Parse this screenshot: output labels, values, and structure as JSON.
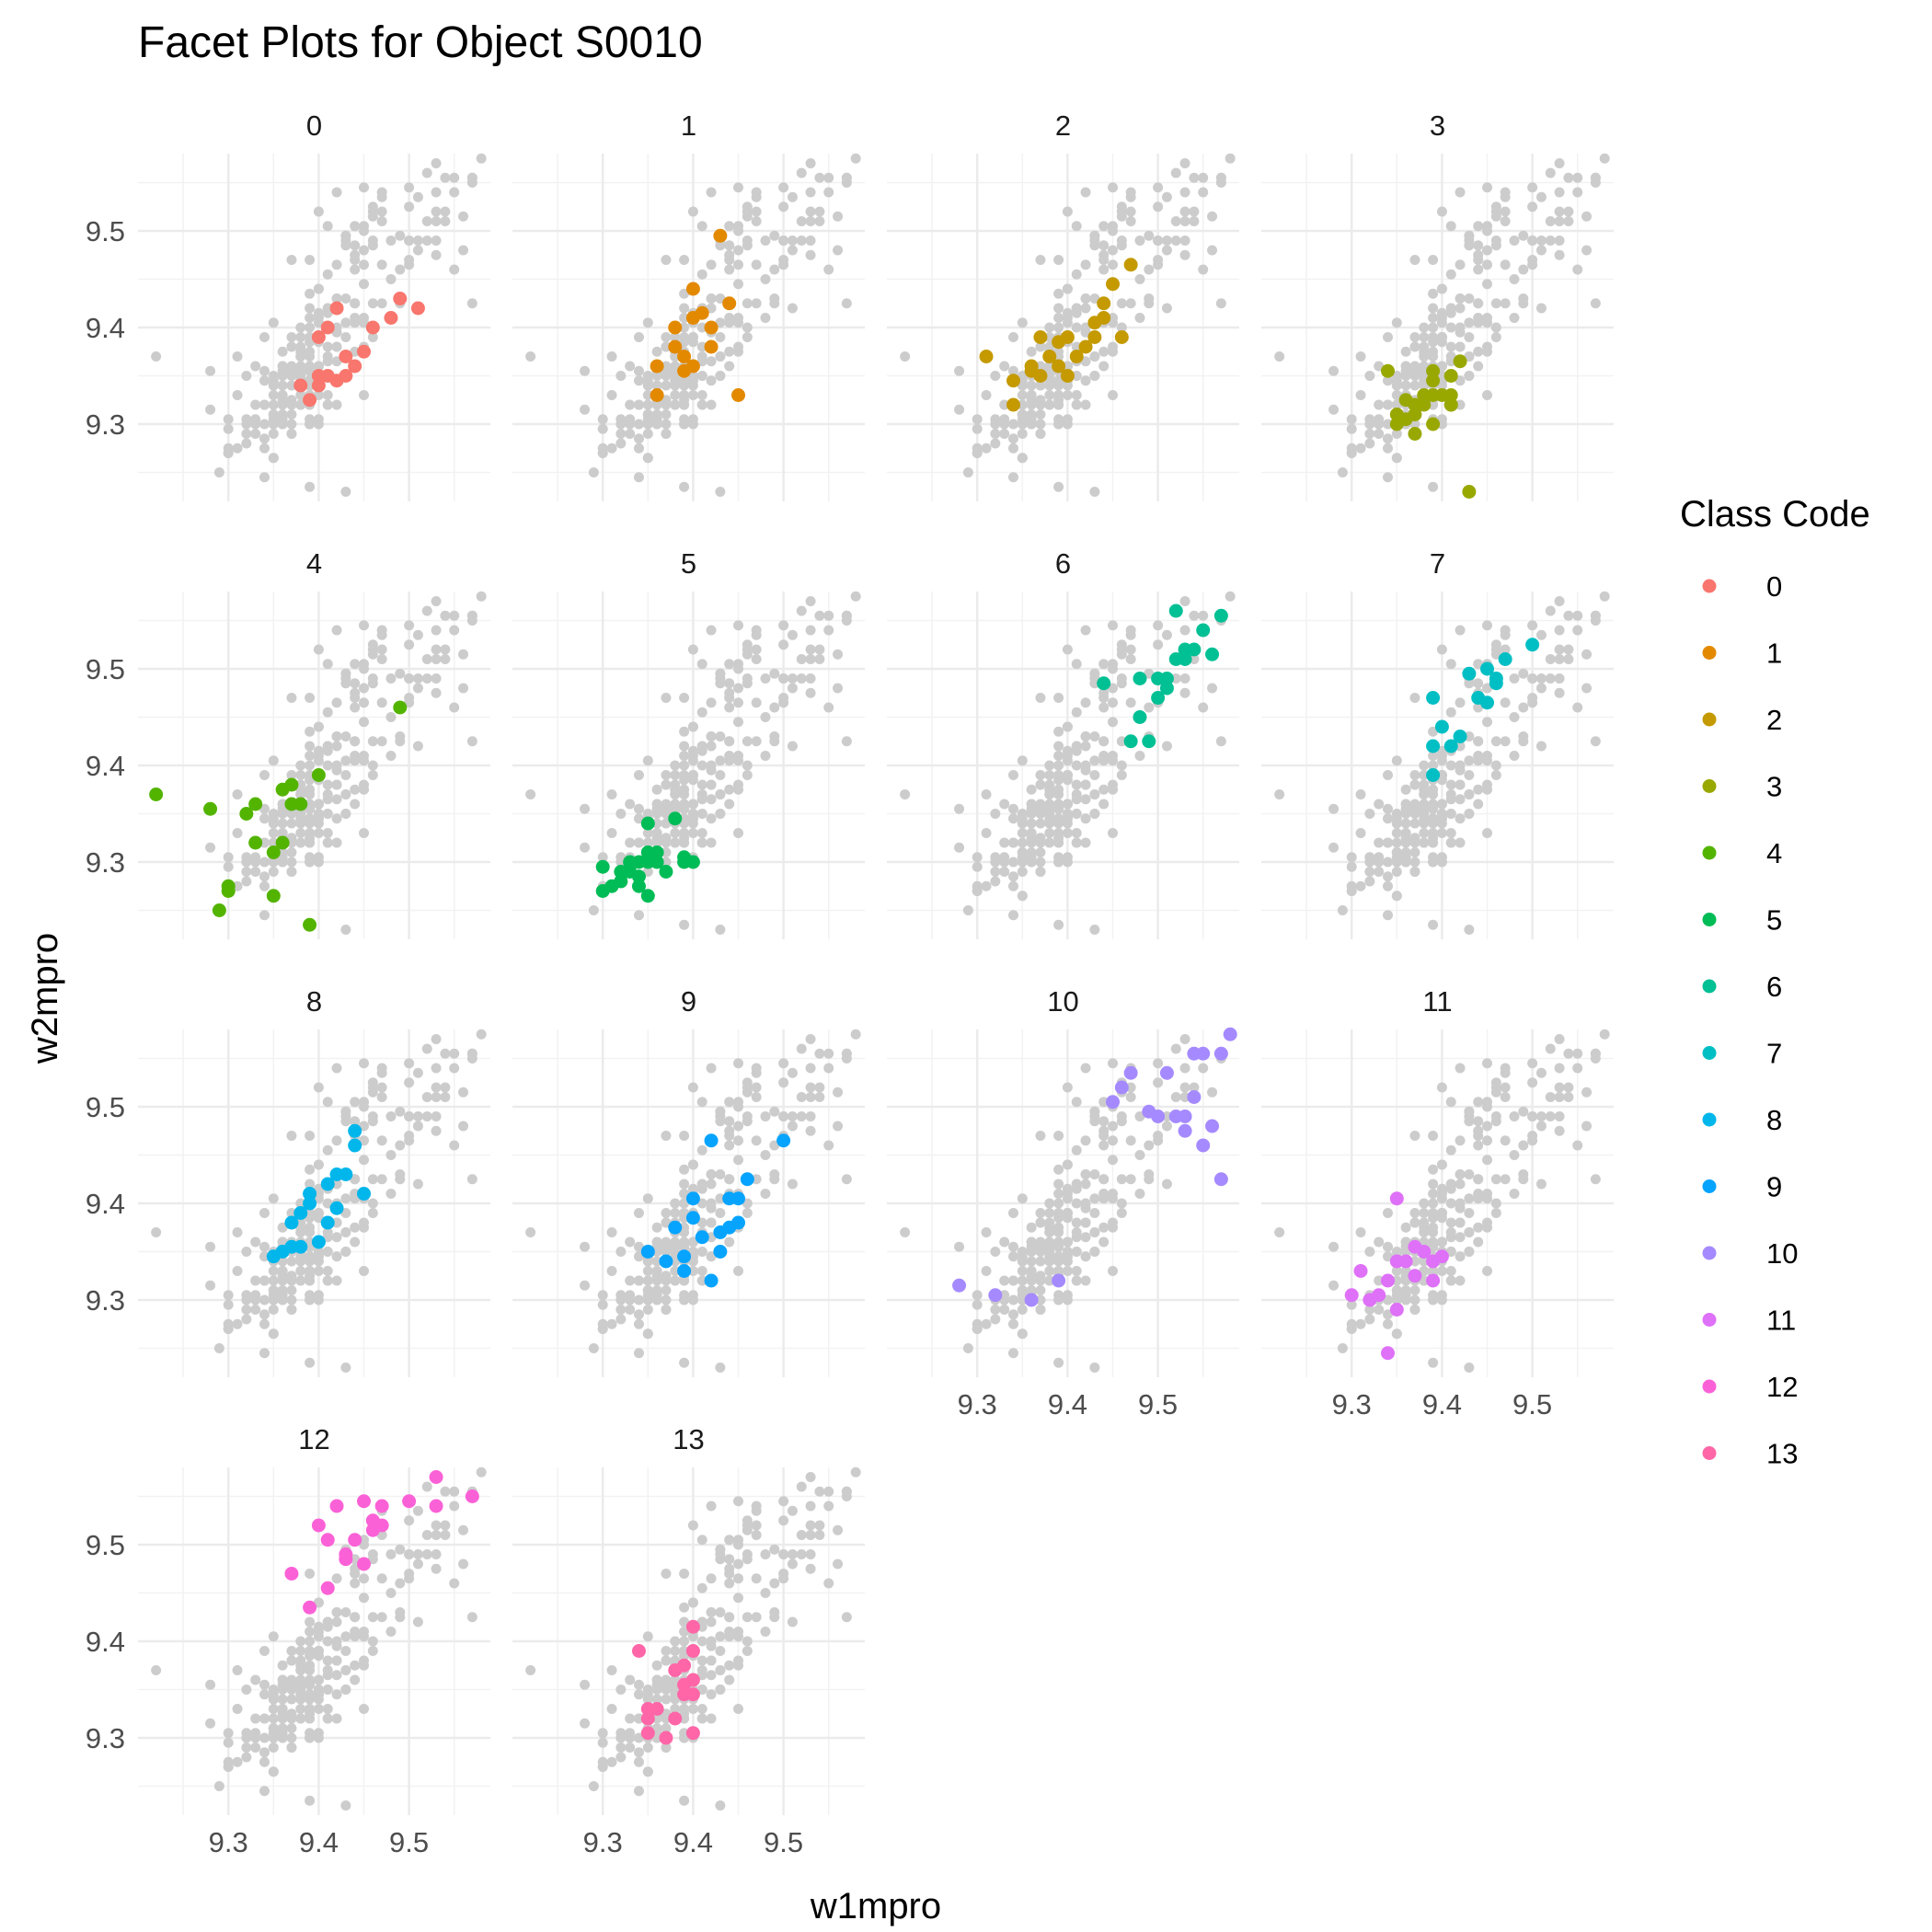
{
  "chart_data": {
    "type": "scatter",
    "title": "Facet Plots for Object S0010",
    "xlabel": "w1mpro",
    "ylabel": "w2mpro",
    "xlim": [
      9.2,
      9.59
    ],
    "ylim": [
      9.22,
      9.58
    ],
    "x_ticks": [
      "9.3",
      "9.4",
      "9.5"
    ],
    "y_ticks": [
      "9.3",
      "9.4",
      "9.5"
    ],
    "grid": true,
    "background_color": "#cccccc",
    "legend": {
      "title": "Class Code",
      "placement": "right"
    },
    "facets": [
      {
        "label": "0",
        "color": "#F8766D",
        "points": [
          [
            9.38,
            9.34
          ],
          [
            9.39,
            9.325
          ],
          [
            9.4,
            9.35
          ],
          [
            9.4,
            9.34
          ],
          [
            9.41,
            9.35
          ],
          [
            9.42,
            9.345
          ],
          [
            9.43,
            9.37
          ],
          [
            9.44,
            9.36
          ],
          [
            9.43,
            9.35
          ],
          [
            9.45,
            9.375
          ],
          [
            9.4,
            9.39
          ],
          [
            9.41,
            9.4
          ],
          [
            9.42,
            9.42
          ],
          [
            9.46,
            9.4
          ],
          [
            9.48,
            9.41
          ],
          [
            9.49,
            9.43
          ],
          [
            9.51,
            9.42
          ]
        ]
      },
      {
        "label": "1",
        "color": "#E38900",
        "points": [
          [
            9.36,
            9.33
          ],
          [
            9.36,
            9.36
          ],
          [
            9.38,
            9.38
          ],
          [
            9.38,
            9.4
          ],
          [
            9.39,
            9.37
          ],
          [
            9.39,
            9.355
          ],
          [
            9.4,
            9.36
          ],
          [
            9.4,
            9.41
          ],
          [
            9.4,
            9.44
          ],
          [
            9.41,
            9.415
          ],
          [
            9.42,
            9.38
          ],
          [
            9.42,
            9.4
          ],
          [
            9.43,
            9.495
          ],
          [
            9.44,
            9.425
          ],
          [
            9.45,
            9.33
          ]
        ]
      },
      {
        "label": "2",
        "color": "#C49A00",
        "points": [
          [
            9.31,
            9.37
          ],
          [
            9.34,
            9.32
          ],
          [
            9.34,
            9.345
          ],
          [
            9.36,
            9.355
          ],
          [
            9.36,
            9.36
          ],
          [
            9.37,
            9.39
          ],
          [
            9.37,
            9.35
          ],
          [
            9.38,
            9.37
          ],
          [
            9.39,
            9.385
          ],
          [
            9.39,
            9.36
          ],
          [
            9.4,
            9.35
          ],
          [
            9.4,
            9.39
          ],
          [
            9.41,
            9.37
          ],
          [
            9.42,
            9.38
          ],
          [
            9.43,
            9.39
          ],
          [
            9.43,
            9.405
          ],
          [
            9.44,
            9.41
          ],
          [
            9.44,
            9.425
          ],
          [
            9.45,
            9.445
          ],
          [
            9.46,
            9.39
          ],
          [
            9.47,
            9.465
          ]
        ]
      },
      {
        "label": "3",
        "color": "#99A800",
        "points": [
          [
            9.34,
            9.355
          ],
          [
            9.35,
            9.31
          ],
          [
            9.35,
            9.3
          ],
          [
            9.36,
            9.325
          ],
          [
            9.36,
            9.305
          ],
          [
            9.37,
            9.31
          ],
          [
            9.37,
            9.29
          ],
          [
            9.37,
            9.32
          ],
          [
            9.38,
            9.33
          ],
          [
            9.38,
            9.32
          ],
          [
            9.39,
            9.355
          ],
          [
            9.39,
            9.345
          ],
          [
            9.39,
            9.3
          ],
          [
            9.39,
            9.33
          ],
          [
            9.4,
            9.33
          ],
          [
            9.41,
            9.35
          ],
          [
            9.41,
            9.32
          ],
          [
            9.41,
            9.32
          ],
          [
            9.41,
            9.33
          ],
          [
            9.42,
            9.365
          ],
          [
            9.43,
            9.23
          ]
        ]
      },
      {
        "label": "4",
        "color": "#53B400",
        "points": [
          [
            9.22,
            9.37
          ],
          [
            9.28,
            9.355
          ],
          [
            9.29,
            9.25
          ],
          [
            9.3,
            9.275
          ],
          [
            9.3,
            9.27
          ],
          [
            9.32,
            9.35
          ],
          [
            9.33,
            9.36
          ],
          [
            9.33,
            9.32
          ],
          [
            9.35,
            9.265
          ],
          [
            9.35,
            9.31
          ],
          [
            9.36,
            9.32
          ],
          [
            9.36,
            9.375
          ],
          [
            9.37,
            9.38
          ],
          [
            9.37,
            9.36
          ],
          [
            9.38,
            9.36
          ],
          [
            9.39,
            9.235
          ],
          [
            9.4,
            9.39
          ],
          [
            9.49,
            9.46
          ]
        ]
      },
      {
        "label": "5",
        "color": "#00BC56",
        "points": [
          [
            9.3,
            9.295
          ],
          [
            9.3,
            9.27
          ],
          [
            9.31,
            9.275
          ],
          [
            9.32,
            9.29
          ],
          [
            9.32,
            9.28
          ],
          [
            9.33,
            9.3
          ],
          [
            9.33,
            9.29
          ],
          [
            9.34,
            9.285
          ],
          [
            9.34,
            9.3
          ],
          [
            9.34,
            9.275
          ],
          [
            9.35,
            9.31
          ],
          [
            9.35,
            9.265
          ],
          [
            9.35,
            9.3
          ],
          [
            9.36,
            9.3
          ],
          [
            9.36,
            9.31
          ],
          [
            9.37,
            9.29
          ],
          [
            9.38,
            9.345
          ],
          [
            9.39,
            9.305
          ],
          [
            9.39,
            9.3
          ],
          [
            9.4,
            9.3
          ],
          [
            9.35,
            9.34
          ]
        ]
      },
      {
        "label": "6",
        "color": "#00C094",
        "points": [
          [
            9.44,
            9.485
          ],
          [
            9.47,
            9.425
          ],
          [
            9.48,
            9.45
          ],
          [
            9.48,
            9.49
          ],
          [
            9.49,
            9.425
          ],
          [
            9.5,
            9.49
          ],
          [
            9.5,
            9.47
          ],
          [
            9.51,
            9.49
          ],
          [
            9.51,
            9.48
          ],
          [
            9.52,
            9.51
          ],
          [
            9.53,
            9.51
          ],
          [
            9.53,
            9.52
          ],
          [
            9.54,
            9.52
          ],
          [
            9.55,
            9.54
          ],
          [
            9.56,
            9.515
          ],
          [
            9.57,
            9.555
          ],
          [
            9.52,
            9.56
          ]
        ]
      },
      {
        "label": "7",
        "color": "#00BFC4",
        "points": [
          [
            9.39,
            9.39
          ],
          [
            9.39,
            9.42
          ],
          [
            9.39,
            9.47
          ],
          [
            9.4,
            9.44
          ],
          [
            9.41,
            9.42
          ],
          [
            9.42,
            9.43
          ],
          [
            9.43,
            9.495
          ],
          [
            9.44,
            9.47
          ],
          [
            9.45,
            9.465
          ],
          [
            9.45,
            9.5
          ],
          [
            9.46,
            9.485
          ],
          [
            9.46,
            9.49
          ],
          [
            9.47,
            9.51
          ],
          [
            9.5,
            9.525
          ]
        ]
      },
      {
        "label": "8",
        "color": "#00B6EB",
        "points": [
          [
            9.35,
            9.345
          ],
          [
            9.36,
            9.35
          ],
          [
            9.37,
            9.355
          ],
          [
            9.37,
            9.38
          ],
          [
            9.38,
            9.39
          ],
          [
            9.38,
            9.355
          ],
          [
            9.39,
            9.4
          ],
          [
            9.39,
            9.41
          ],
          [
            9.4,
            9.36
          ],
          [
            9.41,
            9.38
          ],
          [
            9.41,
            9.42
          ],
          [
            9.42,
            9.43
          ],
          [
            9.42,
            9.395
          ],
          [
            9.43,
            9.43
          ],
          [
            9.44,
            9.46
          ],
          [
            9.44,
            9.475
          ],
          [
            9.45,
            9.41
          ]
        ]
      },
      {
        "label": "9",
        "color": "#06A4FF",
        "points": [
          [
            9.35,
            9.35
          ],
          [
            9.37,
            9.34
          ],
          [
            9.38,
            9.375
          ],
          [
            9.39,
            9.33
          ],
          [
            9.39,
            9.345
          ],
          [
            9.4,
            9.405
          ],
          [
            9.4,
            9.385
          ],
          [
            9.41,
            9.365
          ],
          [
            9.42,
            9.32
          ],
          [
            9.42,
            9.465
          ],
          [
            9.43,
            9.35
          ],
          [
            9.43,
            9.37
          ],
          [
            9.44,
            9.405
          ],
          [
            9.44,
            9.375
          ],
          [
            9.45,
            9.38
          ],
          [
            9.45,
            9.405
          ],
          [
            9.46,
            9.425
          ],
          [
            9.5,
            9.465
          ]
        ]
      },
      {
        "label": "10",
        "color": "#A58AFF",
        "points": [
          [
            9.28,
            9.315
          ],
          [
            9.32,
            9.305
          ],
          [
            9.36,
            9.3
          ],
          [
            9.39,
            9.32
          ],
          [
            9.45,
            9.505
          ],
          [
            9.46,
            9.52
          ],
          [
            9.47,
            9.535
          ],
          [
            9.49,
            9.495
          ],
          [
            9.5,
            9.49
          ],
          [
            9.51,
            9.535
          ],
          [
            9.52,
            9.49
          ],
          [
            9.53,
            9.475
          ],
          [
            9.53,
            9.49
          ],
          [
            9.54,
            9.555
          ],
          [
            9.54,
            9.51
          ],
          [
            9.55,
            9.46
          ],
          [
            9.55,
            9.555
          ],
          [
            9.56,
            9.48
          ],
          [
            9.57,
            9.555
          ],
          [
            9.57,
            9.425
          ],
          [
            9.58,
            9.575
          ]
        ]
      },
      {
        "label": "11",
        "color": "#DF70F8",
        "points": [
          [
            9.3,
            9.305
          ],
          [
            9.31,
            9.33
          ],
          [
            9.32,
            9.3
          ],
          [
            9.33,
            9.305
          ],
          [
            9.34,
            9.32
          ],
          [
            9.34,
            9.245
          ],
          [
            9.35,
            9.34
          ],
          [
            9.35,
            9.29
          ],
          [
            9.35,
            9.405
          ],
          [
            9.36,
            9.34
          ],
          [
            9.37,
            9.355
          ],
          [
            9.37,
            9.325
          ],
          [
            9.38,
            9.35
          ],
          [
            9.39,
            9.34
          ],
          [
            9.39,
            9.32
          ],
          [
            9.4,
            9.345
          ]
        ]
      },
      {
        "label": "12",
        "color": "#FB61D7",
        "points": [
          [
            9.37,
            9.47
          ],
          [
            9.39,
            9.435
          ],
          [
            9.4,
            9.52
          ],
          [
            9.41,
            9.455
          ],
          [
            9.41,
            9.505
          ],
          [
            9.42,
            9.54
          ],
          [
            9.43,
            9.485
          ],
          [
            9.43,
            9.49
          ],
          [
            9.44,
            9.505
          ],
          [
            9.45,
            9.48
          ],
          [
            9.45,
            9.545
          ],
          [
            9.46,
            9.515
          ],
          [
            9.46,
            9.525
          ],
          [
            9.47,
            9.54
          ],
          [
            9.47,
            9.52
          ],
          [
            9.5,
            9.545
          ],
          [
            9.53,
            9.57
          ],
          [
            9.53,
            9.54
          ],
          [
            9.57,
            9.55
          ]
        ]
      },
      {
        "label": "13",
        "color": "#FF66A8",
        "points": [
          [
            9.34,
            9.39
          ],
          [
            9.35,
            9.32
          ],
          [
            9.35,
            9.305
          ],
          [
            9.35,
            9.33
          ],
          [
            9.36,
            9.33
          ],
          [
            9.37,
            9.3
          ],
          [
            9.38,
            9.37
          ],
          [
            9.38,
            9.32
          ],
          [
            9.39,
            9.355
          ],
          [
            9.39,
            9.375
          ],
          [
            9.39,
            9.345
          ],
          [
            9.4,
            9.39
          ],
          [
            9.4,
            9.345
          ],
          [
            9.4,
            9.36
          ],
          [
            9.4,
            9.305
          ],
          [
            9.4,
            9.415
          ]
        ]
      }
    ]
  }
}
